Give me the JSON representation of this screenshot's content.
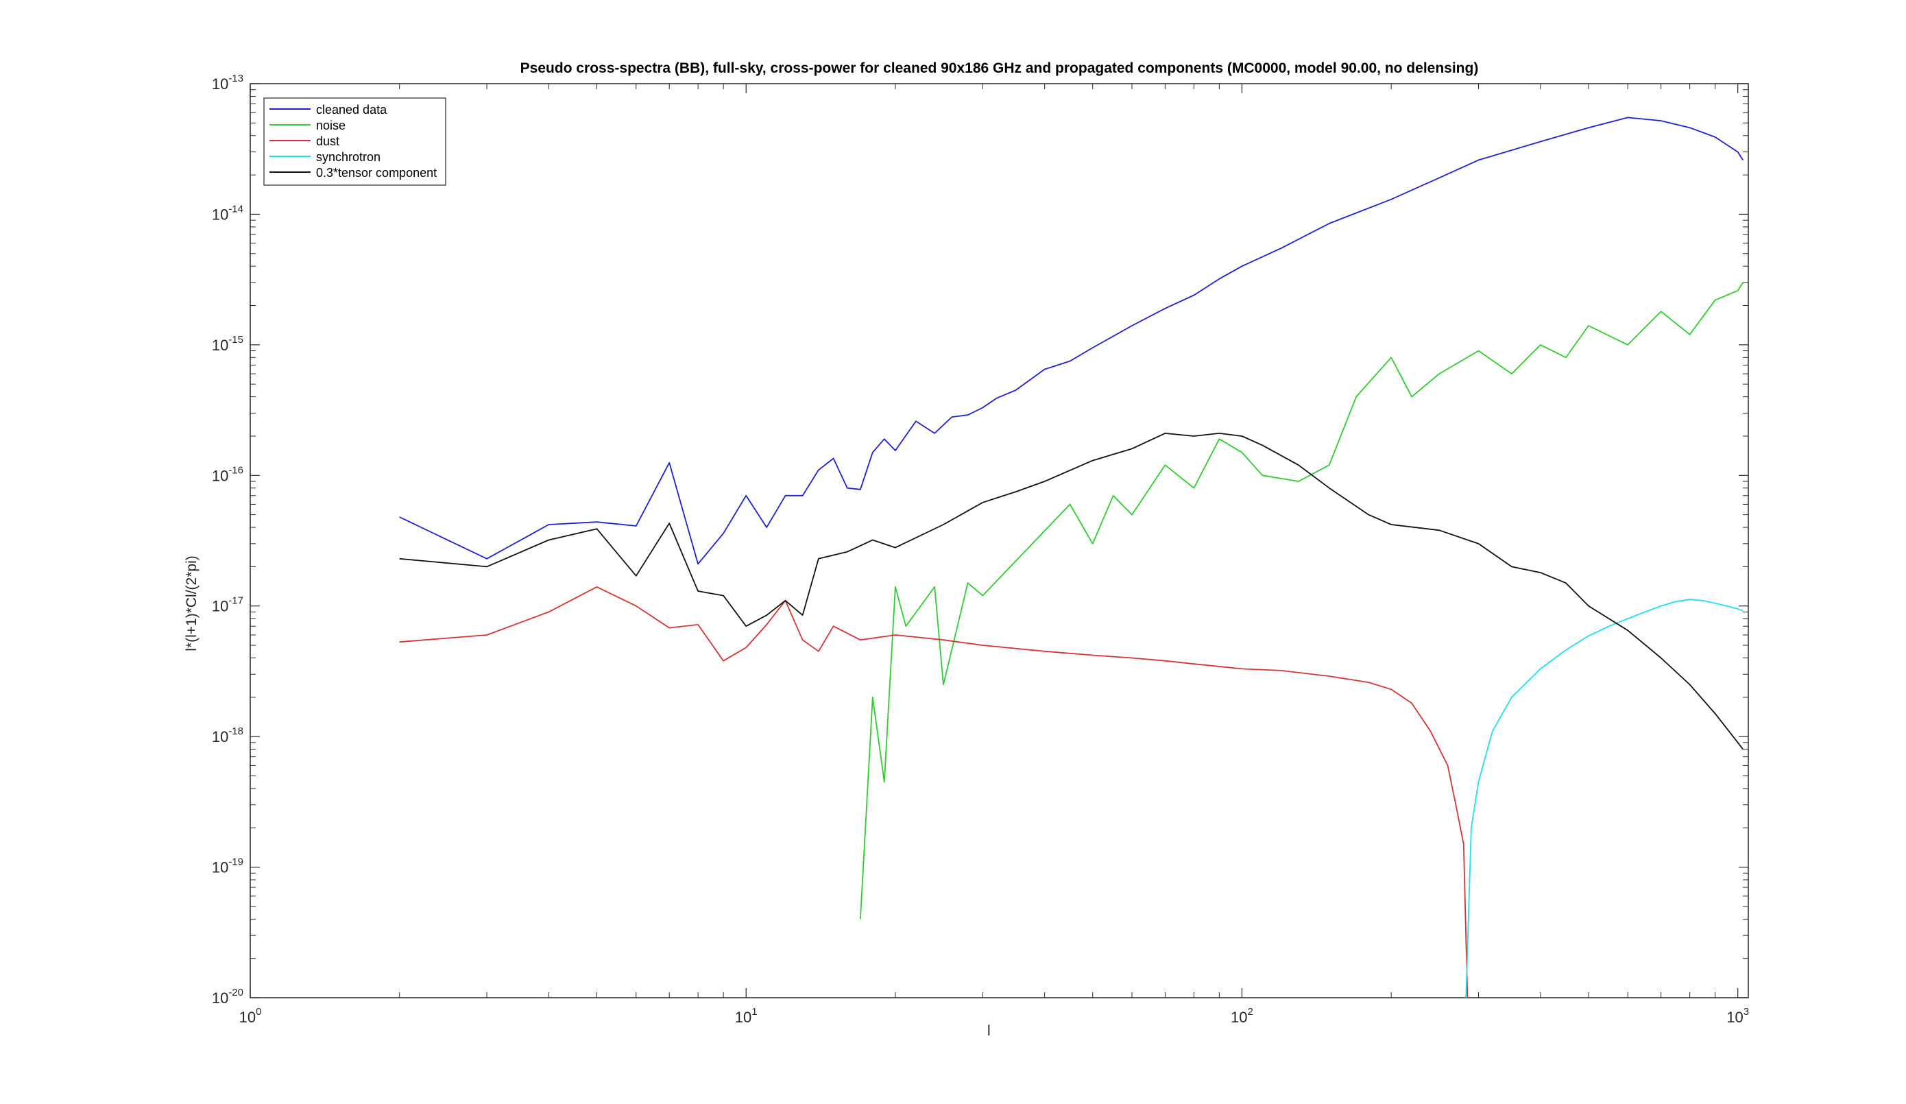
{
  "chart_data": {
    "type": "line",
    "title": "Pseudo cross-spectra (BB), full-sky, cross-power for cleaned 90x186 GHz and propagated components (MC0000, model 90.00, no delensing)",
    "xlabel": "l",
    "ylabel": "l*(l+1)*Cl/(2*pi)",
    "xscale": "log",
    "yscale": "log",
    "xlim": [
      1,
      1050
    ],
    "ylim": [
      1e-20,
      1e-13
    ],
    "x_ticks": [
      {
        "base": "10",
        "exp": "0"
      },
      {
        "base": "10",
        "exp": "1"
      },
      {
        "base": "10",
        "exp": "2"
      },
      {
        "base": "10",
        "exp": "3"
      }
    ],
    "y_ticks": [
      {
        "base": "10",
        "exp": "-20"
      },
      {
        "base": "10",
        "exp": "-19"
      },
      {
        "base": "10",
        "exp": "-18"
      },
      {
        "base": "10",
        "exp": "-17"
      },
      {
        "base": "10",
        "exp": "-16"
      },
      {
        "base": "10",
        "exp": "-15"
      },
      {
        "base": "10",
        "exp": "-14"
      },
      {
        "base": "10",
        "exp": "-13"
      }
    ],
    "grid": false,
    "legend_position": "top-left",
    "series": [
      {
        "name": "cleaned data",
        "color": "#1f1fd6",
        "x": [
          2,
          3,
          4,
          5,
          6,
          7,
          8,
          9,
          10,
          11,
          12,
          13,
          14,
          15,
          16,
          17,
          18,
          19,
          20,
          22,
          24,
          26,
          28,
          30,
          32,
          35,
          40,
          45,
          50,
          60,
          70,
          80,
          90,
          100,
          120,
          150,
          200,
          250,
          300,
          400,
          500,
          600,
          700,
          800,
          900,
          1000,
          1024
        ],
        "y": [
          4.8e-17,
          2.3e-17,
          4.2e-17,
          4.4e-17,
          4.1e-17,
          1.25e-16,
          2.1e-17,
          3.6e-17,
          7e-17,
          4e-17,
          7e-17,
          7e-17,
          1.1e-16,
          1.35e-16,
          8e-17,
          7.8e-17,
          1.5e-16,
          1.9e-16,
          1.55e-16,
          2.6e-16,
          2.1e-16,
          2.8e-16,
          2.9e-16,
          3.3e-16,
          3.9e-16,
          4.5e-16,
          6.5e-16,
          7.5e-16,
          9.5e-16,
          1.4e-15,
          1.9e-15,
          2.4e-15,
          3.2e-15,
          4e-15,
          5.5e-15,
          8.5e-15,
          1.3e-14,
          1.9e-14,
          2.6e-14,
          3.6e-14,
          4.6e-14,
          5.5e-14,
          5.2e-14,
          4.6e-14,
          3.9e-14,
          3e-14,
          2.6e-14
        ]
      },
      {
        "name": "noise",
        "color": "#2ecc2e",
        "x": [
          17,
          18,
          19,
          20,
          21,
          24,
          25,
          28,
          30,
          45,
          50,
          55,
          60,
          70,
          80,
          90,
          100,
          110,
          130,
          150,
          170,
          200,
          220,
          250,
          300,
          350,
          400,
          450,
          500,
          600,
          700,
          800,
          900,
          1000,
          1024
        ],
        "y": [
          4e-20,
          2e-18,
          4.5e-19,
          1.4e-17,
          7e-18,
          1.4e-17,
          2.5e-18,
          1.5e-17,
          1.2e-17,
          6e-17,
          3e-17,
          7e-17,
          5e-17,
          1.2e-16,
          8e-17,
          1.9e-16,
          1.5e-16,
          1e-16,
          9e-17,
          1.2e-16,
          4e-16,
          8e-16,
          4e-16,
          6e-16,
          9e-16,
          6e-16,
          1e-15,
          8e-16,
          1.4e-15,
          1e-15,
          1.8e-15,
          1.2e-15,
          2.2e-15,
          2.6e-15,
          3e-15
        ]
      },
      {
        "name": "dust",
        "color": "#d63333",
        "x": [
          2,
          3,
          4,
          5,
          6,
          7,
          8,
          9,
          10,
          11,
          12,
          13,
          14,
          15,
          17,
          20,
          25,
          30,
          40,
          50,
          60,
          70,
          80,
          100,
          120,
          150,
          180,
          200,
          220,
          240,
          260,
          270,
          280,
          285
        ],
        "y": [
          5.3e-18,
          6e-18,
          9e-18,
          1.4e-17,
          1e-17,
          6.8e-18,
          7.2e-18,
          3.8e-18,
          4.8e-18,
          7.2e-18,
          1.1e-17,
          5.5e-18,
          4.5e-18,
          7e-18,
          5.5e-18,
          6e-18,
          5.5e-18,
          5e-18,
          4.5e-18,
          4.2e-18,
          4e-18,
          3.8e-18,
          3.6e-18,
          3.3e-18,
          3.2e-18,
          2.9e-18,
          2.6e-18,
          2.3e-18,
          1.8e-18,
          1.1e-18,
          6e-19,
          3e-19,
          1.5e-19,
          1e-20
        ]
      },
      {
        "name": "synchrotron",
        "color": "#1fe0e8",
        "x": [
          283,
          290,
          300,
          320,
          350,
          400,
          450,
          500,
          550,
          600,
          650,
          700,
          750,
          800,
          850,
          900,
          950,
          1000,
          1024
        ],
        "y": [
          1e-20,
          2e-19,
          4.5e-19,
          1.1e-18,
          2e-18,
          3.3e-18,
          4.6e-18,
          5.9e-18,
          7e-18,
          8e-18,
          9e-18,
          1e-17,
          1.08e-17,
          1.12e-17,
          1.1e-17,
          1.05e-17,
          1e-17,
          9.5e-18,
          9.2e-18
        ]
      },
      {
        "name": "0.3*tensor component",
        "color": "#111111",
        "x": [
          2,
          3,
          4,
          5,
          6,
          7,
          8,
          9,
          10,
          11,
          12,
          13,
          14,
          16,
          18,
          20,
          25,
          30,
          35,
          40,
          50,
          60,
          70,
          80,
          90,
          100,
          110,
          130,
          150,
          180,
          200,
          250,
          300,
          350,
          400,
          450,
          500,
          600,
          700,
          800,
          900,
          1000,
          1024
        ],
        "y": [
          2.3e-17,
          2e-17,
          3.2e-17,
          3.9e-17,
          1.7e-17,
          4.3e-17,
          1.3e-17,
          1.2e-17,
          7e-18,
          8.5e-18,
          1.1e-17,
          8.5e-18,
          2.3e-17,
          2.6e-17,
          3.2e-17,
          2.8e-17,
          4.2e-17,
          6.2e-17,
          7.5e-17,
          9e-17,
          1.3e-16,
          1.6e-16,
          2.1e-16,
          2e-16,
          2.1e-16,
          2e-16,
          1.7e-16,
          1.2e-16,
          8e-17,
          5e-17,
          4.2e-17,
          3.8e-17,
          3e-17,
          2e-17,
          1.8e-17,
          1.5e-17,
          1e-17,
          6.5e-18,
          4e-18,
          2.5e-18,
          1.5e-18,
          9e-19,
          8e-19
        ]
      }
    ]
  }
}
